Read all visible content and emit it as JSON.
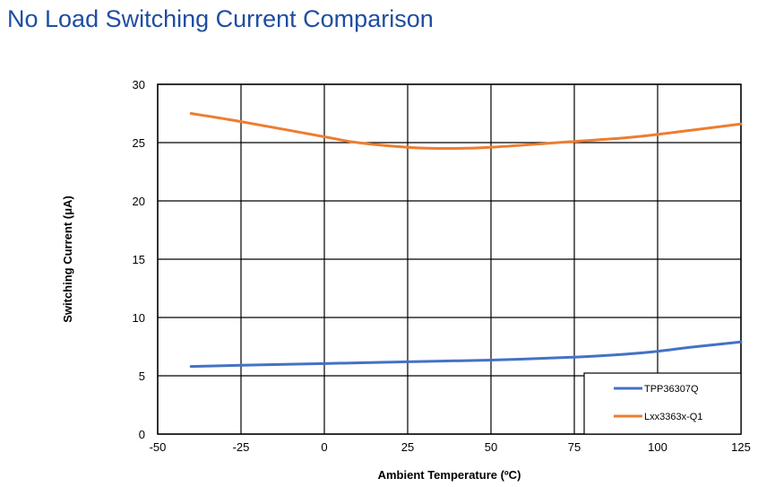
{
  "title": "No Load Switching Current Comparison",
  "chart_data": {
    "type": "line",
    "xlabel": "Ambient Temperature (ºC)",
    "ylabel": "Switching Current (μA)",
    "xlim": [
      -50,
      125
    ],
    "ylim": [
      0,
      30
    ],
    "xticks": [
      -50,
      -25,
      0,
      25,
      50,
      75,
      100,
      125
    ],
    "yticks": [
      0,
      5,
      10,
      15,
      20,
      25,
      30
    ],
    "grid": true,
    "legend_position": "bottom-right",
    "series": [
      {
        "name": "TPP36307Q",
        "color": "#4472c4",
        "x": [
          -40,
          -25,
          0,
          25,
          50,
          75,
          90,
          100,
          110,
          125
        ],
        "y": [
          5.8,
          5.9,
          6.05,
          6.2,
          6.35,
          6.6,
          6.85,
          7.1,
          7.45,
          7.9
        ]
      },
      {
        "name": "Lxx3363x-Q1",
        "color": "#ed7d31",
        "x": [
          -40,
          -25,
          0,
          10,
          25,
          37,
          50,
          75,
          90,
          100,
          125
        ],
        "y": [
          27.5,
          26.8,
          25.5,
          25.0,
          24.6,
          24.5,
          24.6,
          25.1,
          25.4,
          25.7,
          26.6
        ]
      }
    ]
  }
}
